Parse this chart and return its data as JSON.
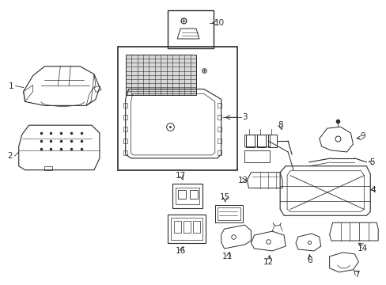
{
  "bg_color": "#ffffff",
  "line_color": "#2a2a2a",
  "fig_width": 4.89,
  "fig_height": 3.6,
  "dpi": 100,
  "gray": "#888888",
  "lightgray": "#cccccc",
  "label_fs": 7.5
}
